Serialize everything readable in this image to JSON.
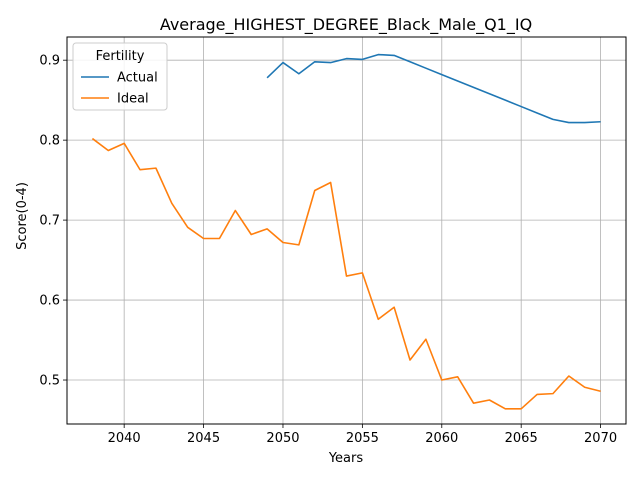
{
  "chart_data": {
    "type": "line",
    "title": "Average_HIGHEST_DEGREE_Black_Male_Q1_IQ",
    "xlabel": "Years",
    "ylabel": "Score(0-4)",
    "xlim": [
      2036.4,
      2071.6
    ],
    "ylim": [
      0.445,
      0.929
    ],
    "xticks": [
      2040,
      2045,
      2050,
      2055,
      2060,
      2065,
      2070
    ],
    "yticks": [
      0.5,
      0.6,
      0.7,
      0.8,
      0.9
    ],
    "grid": true,
    "legend": {
      "title": "Fertility",
      "placement": "top-left"
    },
    "series": [
      {
        "name": "Actual",
        "color": "#1f77b4",
        "x": [
          2049,
          2050,
          2051,
          2052,
          2053,
          2054,
          2055,
          2056,
          2057,
          2058,
          2059,
          2060,
          2061,
          2062,
          2063,
          2064,
          2065,
          2066,
          2067,
          2068,
          2069,
          2070
        ],
        "y": [
          0.878,
          0.897,
          0.883,
          0.898,
          0.897,
          0.902,
          0.901,
          0.907,
          0.906,
          0.898,
          0.89,
          0.882,
          0.874,
          0.866,
          0.858,
          0.85,
          0.842,
          0.834,
          0.826,
          0.822,
          0.822,
          0.823
        ]
      },
      {
        "name": "Ideal",
        "color": "#ff7f0e",
        "x": [
          2038,
          2039,
          2040,
          2041,
          2042,
          2043,
          2044,
          2045,
          2046,
          2047,
          2048,
          2049,
          2050,
          2051,
          2052,
          2053,
          2054,
          2055,
          2056,
          2057,
          2058,
          2059,
          2060,
          2061,
          2062,
          2063,
          2064,
          2065,
          2066,
          2067,
          2068,
          2069,
          2070
        ],
        "y": [
          0.802,
          0.787,
          0.796,
          0.763,
          0.765,
          0.721,
          0.691,
          0.677,
          0.677,
          0.712,
          0.682,
          0.689,
          0.672,
          0.669,
          0.737,
          0.747,
          0.63,
          0.634,
          0.576,
          0.591,
          0.525,
          0.551,
          0.5,
          0.504,
          0.471,
          0.475,
          0.464,
          0.464,
          0.482,
          0.483,
          0.505,
          0.491,
          0.486
        ]
      }
    ]
  }
}
